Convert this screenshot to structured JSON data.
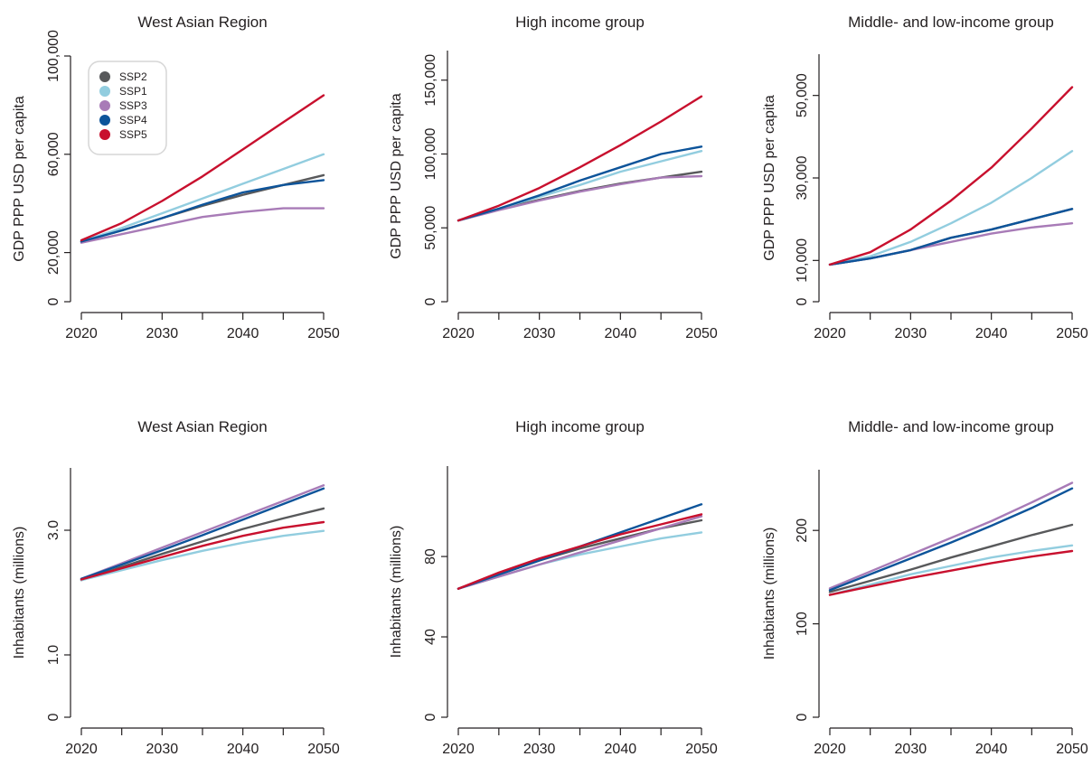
{
  "series_styles": [
    {
      "key": "SSP2",
      "color": "#58595b"
    },
    {
      "key": "SSP1",
      "color": "#92cddf"
    },
    {
      "key": "SSP3",
      "color": "#a87bb7"
    },
    {
      "key": "SSP4",
      "color": "#0d549a"
    },
    {
      "key": "SSP5",
      "color": "#c8102e"
    }
  ],
  "legend": {
    "placement": "top-left of first panel",
    "entries": [
      "SSP2",
      "SSP1",
      "SSP3",
      "SSP4",
      "SSP5"
    ]
  },
  "chart_data": [
    {
      "type": "line",
      "title": "West Asian Region",
      "xlabel": "",
      "ylabel": "GDP PPP USD per capita",
      "xlim": [
        2020,
        2050
      ],
      "ylim": [
        0,
        100000
      ],
      "yticks": [
        0,
        20000,
        60000,
        100000
      ],
      "ytick_labels": [
        "0",
        "20,000",
        "60,000",
        "100,000"
      ],
      "xticks": [
        2020,
        2030,
        2040,
        2050
      ],
      "xtick_labels": [
        "2020",
        "2030",
        "2040",
        "2050"
      ],
      "x": [
        2020,
        2025,
        2030,
        2035,
        2040,
        2045,
        2050
      ],
      "series": [
        {
          "name": "SSP2",
          "values": [
            24500,
            29000,
            34000,
            39000,
            43500,
            47500,
            51500
          ]
        },
        {
          "name": "SSP1",
          "values": [
            24500,
            30000,
            36000,
            42000,
            48000,
            54000,
            60000
          ]
        },
        {
          "name": "SSP3",
          "values": [
            24000,
            27500,
            31000,
            34500,
            36500,
            38000,
            38000
          ]
        },
        {
          "name": "SSP4",
          "values": [
            24500,
            29000,
            34000,
            39500,
            44500,
            47500,
            49500
          ]
        },
        {
          "name": "SSP5",
          "values": [
            25000,
            32000,
            41000,
            51000,
            62000,
            73000,
            84000
          ]
        }
      ]
    },
    {
      "type": "line",
      "title": "High income group",
      "xlabel": "",
      "ylabel": "GDP PPP USD per capita",
      "xlim": [
        2020,
        2050
      ],
      "ylim": [
        0,
        170000
      ],
      "yticks": [
        0,
        50000,
        100000,
        150000
      ],
      "ytick_labels": [
        "0",
        "50,000",
        "100,000",
        "150,000"
      ],
      "xticks": [
        2020,
        2030,
        2040,
        2050
      ],
      "xtick_labels": [
        "2020",
        "2030",
        "2040",
        "2050"
      ],
      "x": [
        2020,
        2025,
        2030,
        2035,
        2040,
        2045,
        2050
      ],
      "series": [
        {
          "name": "SSP2",
          "values": [
            55000,
            62500,
            69000,
            75000,
            80000,
            84000,
            88000
          ]
        },
        {
          "name": "SSP1",
          "values": [
            55000,
            63000,
            71000,
            79000,
            88000,
            95000,
            102000
          ]
        },
        {
          "name": "SSP3",
          "values": [
            55000,
            62000,
            68500,
            74500,
            79500,
            84000,
            85000
          ]
        },
        {
          "name": "SSP4",
          "values": [
            55000,
            63000,
            72000,
            82000,
            91000,
            100000,
            105000
          ]
        },
        {
          "name": "SSP5",
          "values": [
            55000,
            65000,
            77000,
            91000,
            106000,
            122000,
            139000
          ]
        }
      ]
    },
    {
      "type": "line",
      "title": "Middle- and low-income group",
      "xlabel": "",
      "ylabel": "GDP PPP USD per capita",
      "xlim": [
        2020,
        2050
      ],
      "ylim": [
        0,
        60000
      ],
      "yticks": [
        0,
        10000,
        30000,
        50000
      ],
      "ytick_labels": [
        "0",
        "10,000",
        "30,000",
        "50,000"
      ],
      "xticks": [
        2020,
        2030,
        2040,
        2050
      ],
      "xtick_labels": [
        "2020",
        "2030",
        "2040",
        "2050"
      ],
      "x": [
        2020,
        2025,
        2030,
        2035,
        2040,
        2045,
        2050
      ],
      "series": [
        {
          "name": "SSP2",
          "values": [
            9000,
            10500,
            12500,
            15500,
            17500,
            20000,
            22500
          ]
        },
        {
          "name": "SSP1",
          "values": [
            9000,
            11000,
            14500,
            19000,
            24000,
            30000,
            36500
          ]
        },
        {
          "name": "SSP3",
          "values": [
            9000,
            10500,
            12500,
            14500,
            16500,
            18000,
            19000
          ]
        },
        {
          "name": "SSP4",
          "values": [
            9000,
            10500,
            12500,
            15500,
            17500,
            20000,
            22500
          ]
        },
        {
          "name": "SSP5",
          "values": [
            9000,
            12000,
            17500,
            24500,
            32500,
            42000,
            52000
          ]
        }
      ]
    },
    {
      "type": "line",
      "title": "West Asian Region",
      "xlabel": "",
      "ylabel": "Inhabitants (millions)",
      "xlim": [
        2020,
        2050
      ],
      "ylim": [
        0,
        4.0
      ],
      "yticks": [
        0,
        1.0,
        3.0
      ],
      "ytick_labels": [
        "0",
        "1.0",
        "3.0"
      ],
      "xticks": [
        2020,
        2030,
        2040,
        2050
      ],
      "xtick_labels": [
        "2020",
        "2030",
        "2040",
        "2050"
      ],
      "x": [
        2020,
        2025,
        2030,
        2035,
        2040,
        2045,
        2050
      ],
      "series": [
        {
          "name": "SSP2",
          "values": [
            2.2,
            2.41,
            2.62,
            2.82,
            3.02,
            3.19,
            3.35
          ]
        },
        {
          "name": "SSP1",
          "values": [
            2.2,
            2.36,
            2.52,
            2.67,
            2.8,
            2.91,
            2.99
          ]
        },
        {
          "name": "SSP3",
          "values": [
            2.22,
            2.47,
            2.72,
            2.97,
            3.22,
            3.47,
            3.72
          ]
        },
        {
          "name": "SSP4",
          "values": [
            2.22,
            2.45,
            2.68,
            2.92,
            3.17,
            3.42,
            3.67
          ]
        },
        {
          "name": "SSP5",
          "values": [
            2.21,
            2.39,
            2.57,
            2.75,
            2.91,
            3.04,
            3.13
          ]
        }
      ]
    },
    {
      "type": "line",
      "title": "High income group",
      "xlabel": "",
      "ylabel": "Inhabitants (millions)",
      "xlim": [
        2020,
        2050
      ],
      "ylim": [
        0,
        125
      ],
      "yticks": [
        0,
        40,
        80
      ],
      "ytick_labels": [
        "0",
        "40",
        "80"
      ],
      "xticks": [
        2020,
        2030,
        2040,
        2050
      ],
      "xtick_labels": [
        "2020",
        "2030",
        "2040",
        "2050"
      ],
      "x": [
        2020,
        2025,
        2030,
        2035,
        2040,
        2045,
        2050
      ],
      "series": [
        {
          "name": "SSP2",
          "values": [
            64,
            71,
            78,
            84,
            89,
            94,
            98
          ]
        },
        {
          "name": "SSP1",
          "values": [
            64,
            70,
            76,
            81,
            85,
            89,
            92
          ]
        },
        {
          "name": "SSP3",
          "values": [
            64,
            70,
            76,
            82,
            88,
            94,
            100
          ]
        },
        {
          "name": "SSP4",
          "values": [
            64,
            71,
            78,
            85,
            92,
            99,
            106
          ]
        },
        {
          "name": "SSP5",
          "values": [
            64,
            72,
            79,
            85,
            91,
            96,
            101
          ]
        }
      ]
    },
    {
      "type": "line",
      "title": "Middle- and low-income group",
      "xlabel": "",
      "ylabel": "Inhabitants (millions)",
      "xlim": [
        2020,
        2050
      ],
      "ylim": [
        0,
        265
      ],
      "yticks": [
        0,
        100,
        200
      ],
      "ytick_labels": [
        "0",
        "100",
        "200"
      ],
      "xticks": [
        2020,
        2030,
        2040,
        2050
      ],
      "xtick_labels": [
        "2020",
        "2030",
        "2040",
        "2050"
      ],
      "x": [
        2020,
        2025,
        2030,
        2035,
        2040,
        2045,
        2050
      ],
      "series": [
        {
          "name": "SSP2",
          "values": [
            134,
            146,
            158,
            171,
            183,
            195,
            206
          ]
        },
        {
          "name": "SSP1",
          "values": [
            131,
            142,
            153,
            162,
            171,
            178,
            184
          ]
        },
        {
          "name": "SSP3",
          "values": [
            138,
            156,
            174,
            192,
            210,
            230,
            251
          ]
        },
        {
          "name": "SSP4",
          "values": [
            136,
            153,
            170,
            187,
            205,
            224,
            245
          ]
        },
        {
          "name": "SSP5",
          "values": [
            131,
            140,
            149,
            157,
            165,
            172,
            178
          ]
        }
      ]
    }
  ]
}
